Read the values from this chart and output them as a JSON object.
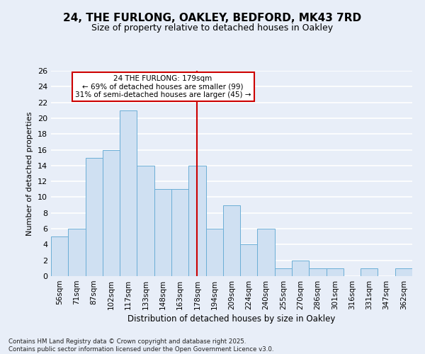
{
  "title": "24, THE FURLONG, OAKLEY, BEDFORD, MK43 7RD",
  "subtitle": "Size of property relative to detached houses in Oakley",
  "xlabel": "Distribution of detached houses by size in Oakley",
  "ylabel": "Number of detached properties",
  "bar_labels": [
    "56sqm",
    "71sqm",
    "87sqm",
    "102sqm",
    "117sqm",
    "133sqm",
    "148sqm",
    "163sqm",
    "178sqm",
    "194sqm",
    "209sqm",
    "224sqm",
    "240sqm",
    "255sqm",
    "270sqm",
    "286sqm",
    "301sqm",
    "316sqm",
    "331sqm",
    "347sqm",
    "362sqm"
  ],
  "bar_values": [
    5,
    6,
    15,
    16,
    21,
    14,
    11,
    11,
    14,
    6,
    9,
    4,
    6,
    1,
    2,
    1,
    1,
    0,
    1,
    0,
    1
  ],
  "bar_color": "#cfe0f2",
  "bar_edge_color": "#6baed6",
  "marker_index": 8,
  "marker_color": "#cc0000",
  "ylim": [
    0,
    26
  ],
  "yticks": [
    0,
    2,
    4,
    6,
    8,
    10,
    12,
    14,
    16,
    18,
    20,
    22,
    24,
    26
  ],
  "annotation_line1": "24 THE FURLONG: 179sqm",
  "annotation_line2": "← 69% of detached houses are smaller (99)",
  "annotation_line3": "31% of semi-detached houses are larger (45) →",
  "annotation_box_color": "#ffffff",
  "annotation_border_color": "#cc0000",
  "bg_color": "#e8eef8",
  "grid_color": "#ffffff",
  "footer_line1": "Contains HM Land Registry data © Crown copyright and database right 2025.",
  "footer_line2": "Contains public sector information licensed under the Open Government Licence v3.0."
}
